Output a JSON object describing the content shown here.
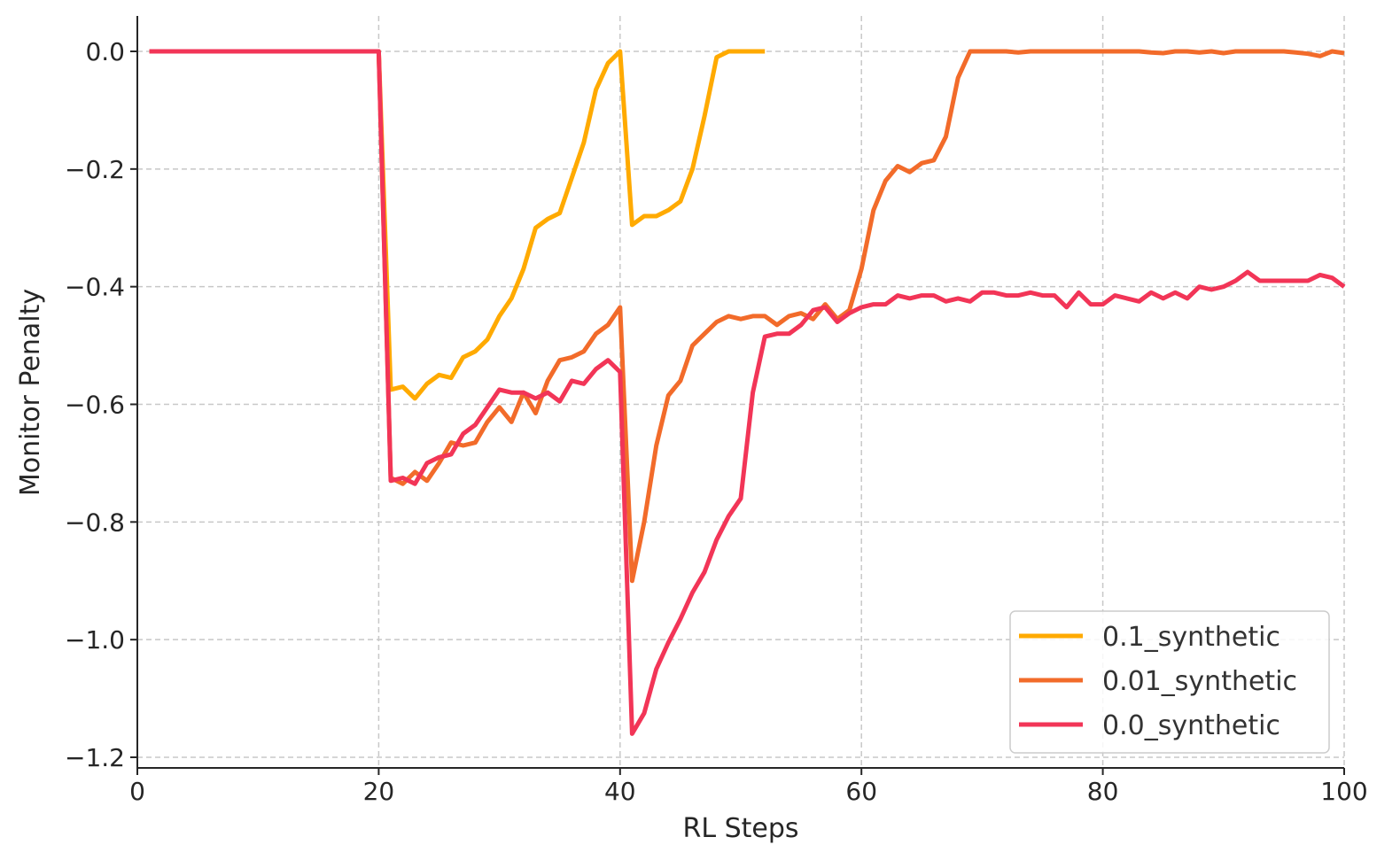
{
  "chart_data": {
    "type": "line",
    "title": "",
    "xlabel": "RL Steps",
    "ylabel": "Monitor Penalty",
    "xlim": [
      0,
      100
    ],
    "ylim": [
      -1.22,
      0.06
    ],
    "xticks": [
      0,
      20,
      40,
      60,
      80,
      100
    ],
    "xtick_labels": [
      "0",
      "20",
      "40",
      "60",
      "80",
      "100"
    ],
    "yticks": [
      0.0,
      -0.2,
      -0.4,
      -0.6,
      -0.8,
      -1.0,
      -1.2
    ],
    "ytick_labels": [
      "0.0",
      "−0.2",
      "−0.4",
      "−0.6",
      "−0.8",
      "−1.0",
      "−1.2"
    ],
    "grid": true,
    "legend_position": "lower-right",
    "series": [
      {
        "name": "0.1_synthetic",
        "color": "#FFAA00",
        "x": [
          1,
          2,
          3,
          4,
          5,
          6,
          7,
          8,
          9,
          10,
          11,
          12,
          13,
          14,
          15,
          16,
          17,
          18,
          19,
          20,
          21,
          22,
          23,
          24,
          25,
          26,
          27,
          28,
          29,
          30,
          31,
          32,
          33,
          34,
          35,
          36,
          37,
          38,
          39,
          40,
          41,
          42,
          43,
          44,
          45,
          46,
          47,
          48,
          49,
          50,
          51,
          52
        ],
        "values": [
          0,
          0,
          0,
          0,
          0,
          0,
          0,
          0,
          0,
          0,
          0,
          0,
          0,
          0,
          0,
          0,
          0,
          0,
          0,
          0,
          -0.575,
          -0.57,
          -0.59,
          -0.565,
          -0.55,
          -0.555,
          -0.52,
          -0.51,
          -0.49,
          -0.45,
          -0.42,
          -0.37,
          -0.3,
          -0.285,
          -0.275,
          -0.215,
          -0.155,
          -0.065,
          -0.02,
          0,
          -0.295,
          -0.28,
          -0.28,
          -0.27,
          -0.255,
          -0.2,
          -0.11,
          -0.01,
          0,
          0,
          0,
          0
        ]
      },
      {
        "name": "0.01_synthetic",
        "color": "#F26B2A",
        "x": [
          1,
          2,
          3,
          4,
          5,
          6,
          7,
          8,
          9,
          10,
          11,
          12,
          13,
          14,
          15,
          16,
          17,
          18,
          19,
          20,
          21,
          22,
          23,
          24,
          25,
          26,
          27,
          28,
          29,
          30,
          31,
          32,
          33,
          34,
          35,
          36,
          37,
          38,
          39,
          40,
          41,
          42,
          43,
          44,
          45,
          46,
          47,
          48,
          49,
          50,
          51,
          52,
          53,
          54,
          55,
          56,
          57,
          58,
          59,
          60,
          61,
          62,
          63,
          64,
          65,
          66,
          67,
          68,
          69,
          70,
          71,
          72,
          73,
          74,
          75,
          76,
          77,
          78,
          79,
          80,
          81,
          82,
          83,
          84,
          85,
          86,
          87,
          88,
          89,
          90,
          91,
          92,
          93,
          94,
          95,
          96,
          97,
          98,
          99,
          100
        ],
        "values": [
          0,
          0,
          0,
          0,
          0,
          0,
          0,
          0,
          0,
          0,
          0,
          0,
          0,
          0,
          0,
          0,
          0,
          0,
          0,
          0,
          -0.725,
          -0.735,
          -0.715,
          -0.73,
          -0.7,
          -0.665,
          -0.67,
          -0.665,
          -0.63,
          -0.605,
          -0.63,
          -0.58,
          -0.615,
          -0.56,
          -0.525,
          -0.52,
          -0.51,
          -0.48,
          -0.465,
          -0.435,
          -0.9,
          -0.8,
          -0.67,
          -0.585,
          -0.56,
          -0.5,
          -0.48,
          -0.46,
          -0.45,
          -0.455,
          -0.45,
          -0.45,
          -0.465,
          -0.45,
          -0.445,
          -0.455,
          -0.43,
          -0.455,
          -0.44,
          -0.37,
          -0.27,
          -0.22,
          -0.195,
          -0.205,
          -0.19,
          -0.185,
          -0.145,
          -0.045,
          0,
          0,
          0,
          0,
          -0.002,
          0,
          0,
          0,
          0,
          0,
          0,
          0,
          0,
          0,
          0,
          -0.002,
          -0.003,
          0,
          0,
          -0.002,
          0,
          -0.003,
          0,
          0,
          0,
          0,
          0,
          -0.002,
          -0.004,
          -0.008,
          0,
          -0.003
        ]
      },
      {
        "name": "0.0_synthetic",
        "color": "#F23557",
        "x": [
          1,
          2,
          3,
          4,
          5,
          6,
          7,
          8,
          9,
          10,
          11,
          12,
          13,
          14,
          15,
          16,
          17,
          18,
          19,
          20,
          21,
          22,
          23,
          24,
          25,
          26,
          27,
          28,
          29,
          30,
          31,
          32,
          33,
          34,
          35,
          36,
          37,
          38,
          39,
          40,
          41,
          42,
          43,
          44,
          45,
          46,
          47,
          48,
          49,
          50,
          51,
          52,
          53,
          54,
          55,
          56,
          57,
          58,
          59,
          60,
          61,
          62,
          63,
          64,
          65,
          66,
          67,
          68,
          69,
          70,
          71,
          72,
          73,
          74,
          75,
          76,
          77,
          78,
          79,
          80,
          81,
          82,
          83,
          84,
          85,
          86,
          87,
          88,
          89,
          90,
          91,
          92,
          93,
          94,
          95,
          96,
          97,
          98,
          99,
          100
        ],
        "values": [
          0,
          0,
          0,
          0,
          0,
          0,
          0,
          0,
          0,
          0,
          0,
          0,
          0,
          0,
          0,
          0,
          0,
          0,
          0,
          0,
          -0.73,
          -0.725,
          -0.735,
          -0.7,
          -0.69,
          -0.685,
          -0.65,
          -0.635,
          -0.605,
          -0.575,
          -0.58,
          -0.58,
          -0.59,
          -0.58,
          -0.595,
          -0.56,
          -0.565,
          -0.54,
          -0.525,
          -0.545,
          -1.16,
          -1.125,
          -1.05,
          -1.005,
          -0.965,
          -0.92,
          -0.885,
          -0.83,
          -0.79,
          -0.76,
          -0.58,
          -0.485,
          -0.48,
          -0.48,
          -0.465,
          -0.44,
          -0.435,
          -0.46,
          -0.445,
          -0.435,
          -0.43,
          -0.43,
          -0.415,
          -0.42,
          -0.415,
          -0.415,
          -0.425,
          -0.42,
          -0.425,
          -0.41,
          -0.41,
          -0.415,
          -0.415,
          -0.41,
          -0.415,
          -0.415,
          -0.435,
          -0.41,
          -0.43,
          -0.43,
          -0.415,
          -0.42,
          -0.425,
          -0.41,
          -0.42,
          -0.41,
          -0.42,
          -0.4,
          -0.405,
          -0.4,
          -0.39,
          -0.375,
          -0.39,
          -0.39,
          -0.39,
          -0.39,
          -0.39,
          -0.38,
          -0.385,
          -0.4
        ]
      }
    ]
  }
}
